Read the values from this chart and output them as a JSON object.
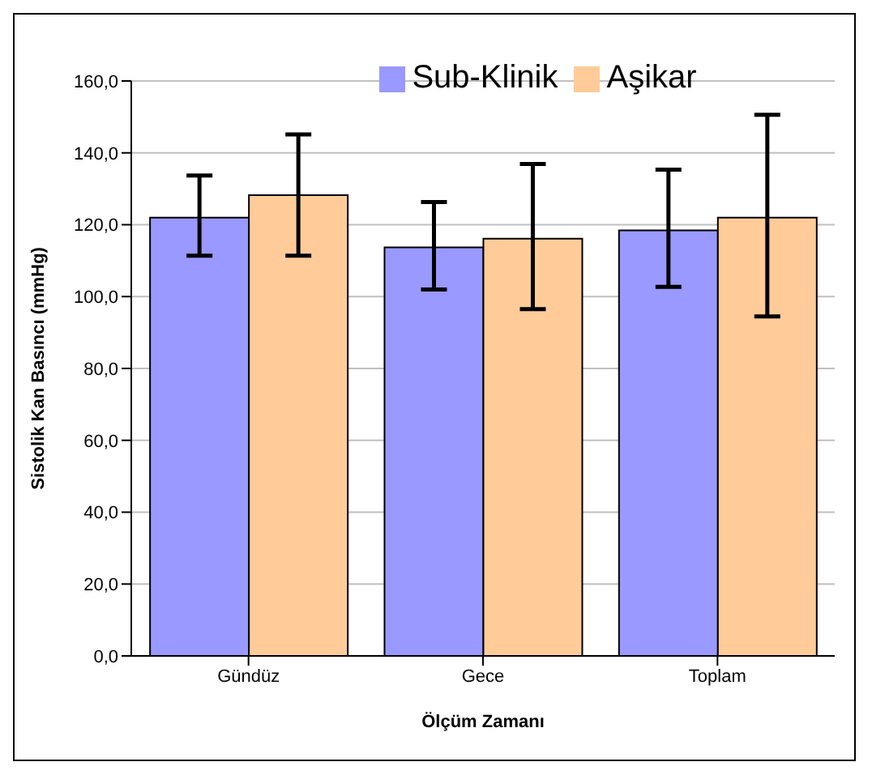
{
  "chart_data": {
    "type": "bar",
    "xlabel": "Ölçüm Zamanı",
    "ylabel": "Sistolik Kan Basıncı (mmHg)",
    "categories": [
      "Gündüz",
      "Gece",
      "Toplam"
    ],
    "series": [
      {
        "name": "Sub-Klinik",
        "color": "#9999ff",
        "values": [
          122.0,
          113.7,
          118.4
        ],
        "errors": [
          [
            111.4,
            133.7
          ],
          [
            102.0,
            126.3
          ],
          [
            102.7,
            135.3
          ]
        ]
      },
      {
        "name": "Aşikar",
        "color": "#ffcc99",
        "values": [
          128.2,
          116.1,
          122.0
        ],
        "errors": [
          [
            111.4,
            145.1
          ],
          [
            96.5,
            136.9
          ],
          [
            94.5,
            150.6
          ]
        ]
      }
    ],
    "ylim": [
      0,
      160
    ],
    "yticks": [
      {
        "value": 0,
        "label": "0,0"
      },
      {
        "value": 20,
        "label": "20,0"
      },
      {
        "value": 40,
        "label": "40,0"
      },
      {
        "value": 60,
        "label": "60,0"
      },
      {
        "value": 80,
        "label": "80,0"
      },
      {
        "value": 100,
        "label": "100,0"
      },
      {
        "value": 120,
        "label": "120,0"
      },
      {
        "value": 140,
        "label": "140,0"
      },
      {
        "value": 160,
        "label": "160,0"
      }
    ],
    "grid": "y",
    "legend": "top"
  }
}
